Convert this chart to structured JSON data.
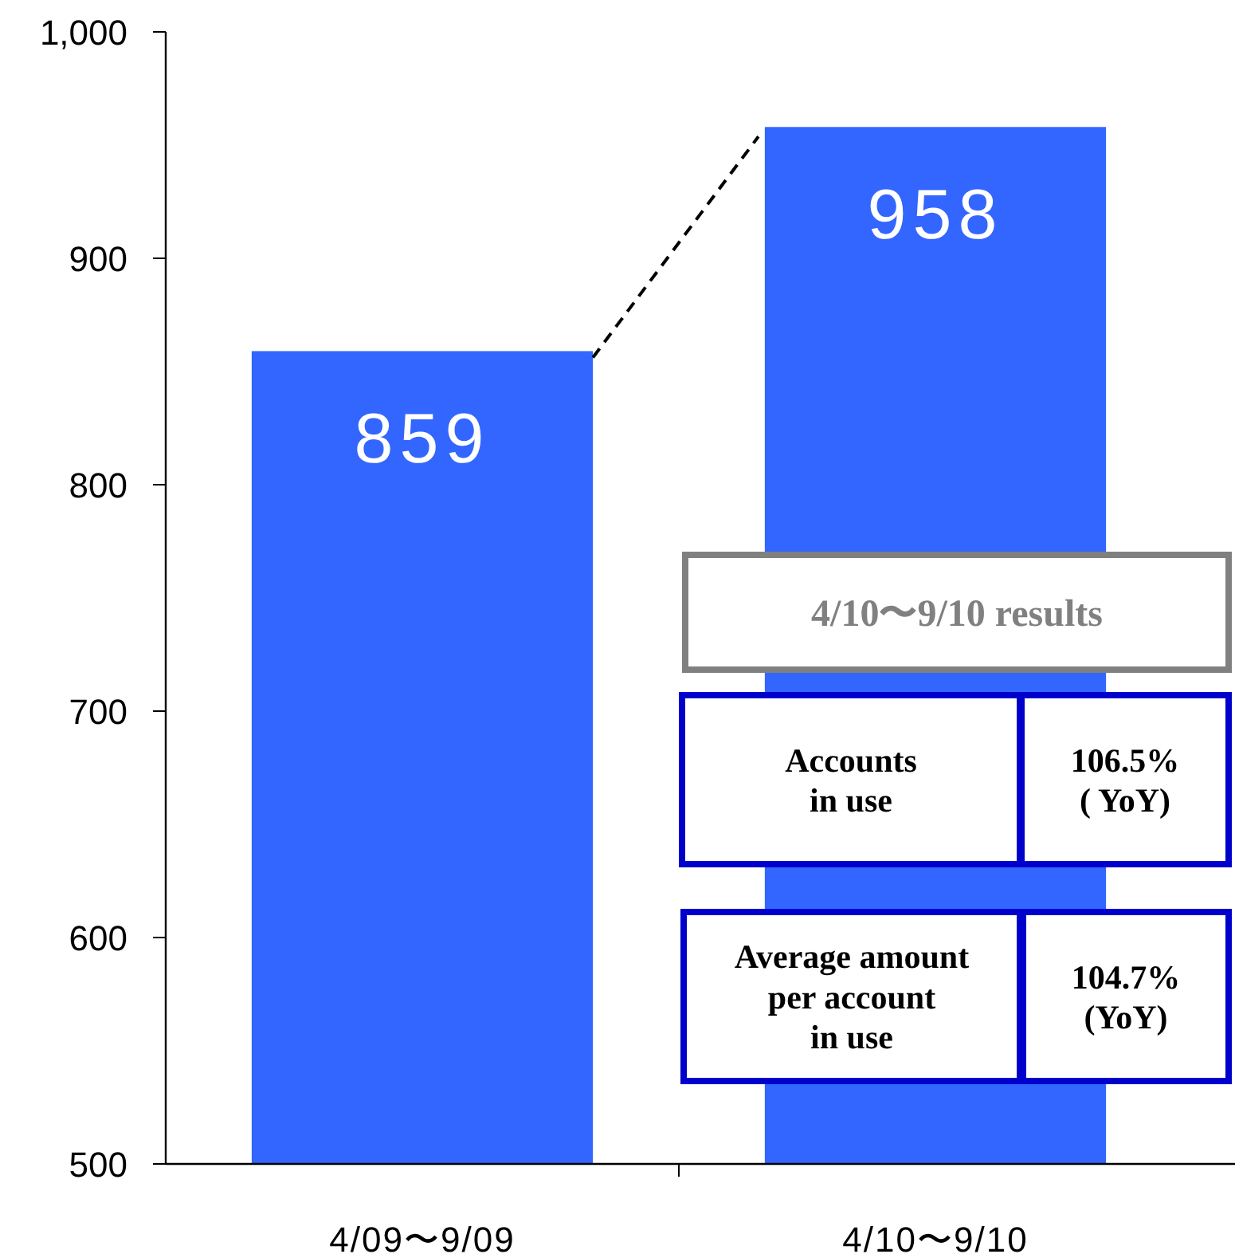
{
  "chart_data": {
    "type": "bar",
    "categories": [
      "4/09〜9/09",
      "4/10〜9/10"
    ],
    "values": [
      859,
      958
    ],
    "color": "#3366ff",
    "ylim": [
      500,
      1000
    ],
    "yticks": [
      500,
      600,
      700,
      800,
      900,
      {
        "value": 1000,
        "label": "1,000"
      }
    ],
    "data_labels": true,
    "annotations": [
      "4/10〜9/10 results",
      "Accounts\nin use",
      "106.5%\n( YoY)",
      "Average amount\nper account\nin use",
      "104.7%\n(YoY)"
    ]
  }
}
